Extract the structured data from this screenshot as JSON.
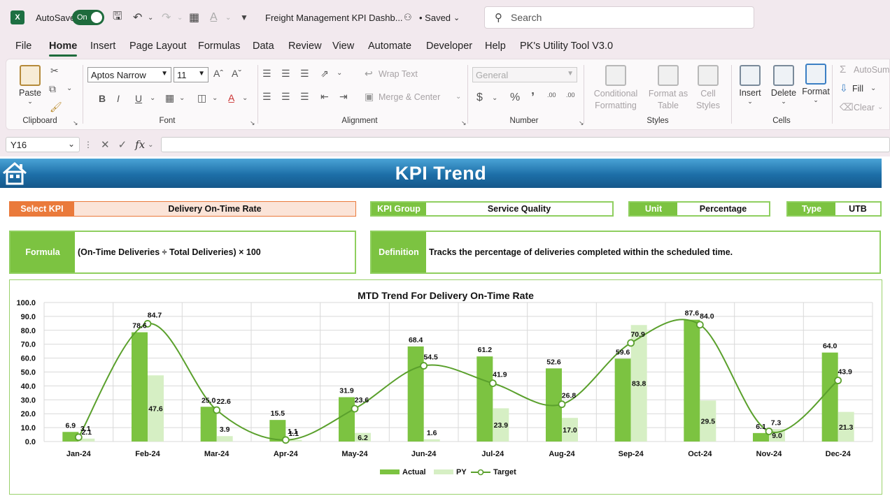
{
  "titlebar": {
    "autosave_label": "AutoSave",
    "autosave_state": "On",
    "doc_title": "Freight Management KPI Dashb...",
    "saved_label": "• Saved",
    "search_placeholder": "Search"
  },
  "menu": {
    "tabs": [
      "File",
      "Home",
      "Insert",
      "Page Layout",
      "Formulas",
      "Data",
      "Review",
      "View",
      "Automate",
      "Developer",
      "Help",
      "PK's Utility Tool V3.0"
    ],
    "active": "Home"
  },
  "ribbon": {
    "clipboard": {
      "paste": "Paste",
      "label": "Clipboard"
    },
    "font": {
      "family": "Aptos Narrow",
      "size": "11",
      "label": "Font",
      "bold": "B",
      "italic": "I",
      "underline": "U"
    },
    "alignment": {
      "wrap": "Wrap Text",
      "merge": "Merge & Center",
      "label": "Alignment"
    },
    "number": {
      "format": "General",
      "currency": "$",
      "percent": "%",
      "comma": "ʼ",
      "inc_decimal": ".00",
      "dec_decimal": ".00",
      "label": "Number"
    },
    "styles": {
      "conditional": "Conditional",
      "conditional2": "Formatting",
      "format_as": "Format as",
      "format_as2": "Table",
      "cell": "Cell",
      "cell2": "Styles",
      "label": "Styles"
    },
    "cells": {
      "insert": "Insert",
      "delete": "Delete",
      "format": "Format",
      "label": "Cells"
    },
    "editing": {
      "autosum": "AutoSum",
      "fill": "Fill",
      "clear": "Clear"
    }
  },
  "formula_bar": {
    "name_box": "Y16",
    "fx": "fx",
    "content": ""
  },
  "dashboard": {
    "title": "KPI Trend",
    "select_kpi_label": "Select KPI",
    "select_kpi_value": "Delivery On-Time Rate",
    "kpi_group_label": "KPI Group",
    "kpi_group_value": "Service Quality",
    "unit_label": "Unit",
    "unit_value": "Percentage",
    "type_label": "Type",
    "type_value": "UTB",
    "formula_label": "Formula",
    "formula_value": "(On-Time Deliveries ÷ Total Deliveries) × 100",
    "definition_label": "Definition",
    "definition_value": "Tracks the percentage of deliveries completed within the scheduled time."
  },
  "colors": {
    "actual": "#7cc341",
    "py": "#d6efc4",
    "target": "#5aa02c",
    "select_kpi": "#ea7a3b",
    "select_kpi_bg": "#fbe4d8",
    "green_label": "#7cc341",
    "banner": "#1d6fa8"
  },
  "chart_data": {
    "type": "bar",
    "title": "MTD Trend For Delivery On-Time Rate",
    "categories": [
      "Jan-24",
      "Feb-24",
      "Mar-24",
      "Apr-24",
      "May-24",
      "Jun-24",
      "Jul-24",
      "Aug-24",
      "Sep-24",
      "Oct-24",
      "Nov-24",
      "Dec-24"
    ],
    "series": [
      {
        "name": "Actual",
        "type": "bar",
        "values": [
          6.9,
          78.6,
          25.0,
          15.5,
          31.9,
          68.4,
          61.2,
          52.6,
          59.6,
          87.6,
          6.1,
          64.0
        ]
      },
      {
        "name": "PY",
        "type": "bar",
        "values": [
          2.1,
          47.6,
          3.9,
          1.1,
          6.2,
          1.6,
          23.9,
          17.0,
          83.8,
          29.5,
          9.0,
          21.3
        ]
      },
      {
        "name": "Target",
        "type": "line",
        "values": [
          3.1,
          84.7,
          22.6,
          1.1,
          23.6,
          54.5,
          41.9,
          26.8,
          70.9,
          84.0,
          7.3,
          43.9
        ]
      }
    ],
    "ylim": [
      0,
      100
    ],
    "yticks": [
      "0.0",
      "10.0",
      "20.0",
      "30.0",
      "40.0",
      "50.0",
      "60.0",
      "70.0",
      "80.0",
      "90.0",
      "100.0"
    ],
    "grid": true,
    "legend": "bottom"
  }
}
